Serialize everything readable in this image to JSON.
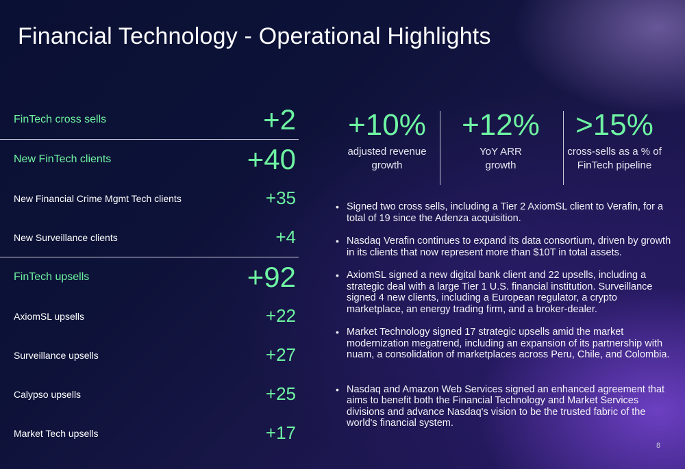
{
  "slide": {
    "title": "Financial Technology - Operational Highlights",
    "page_number": "8"
  },
  "metrics": {
    "cross_sells": {
      "label": "FinTech cross sells",
      "value": "+2"
    },
    "new_clients": {
      "label": "New FinTech clients",
      "value": "+40"
    },
    "fin_crime": {
      "label": "New Financial Crime Mgmt Tech clients",
      "value": "+35"
    },
    "surveillance_clients": {
      "label": "New Surveillance clients",
      "value": "+4"
    },
    "upsells": {
      "label": "FinTech upsells",
      "value": "+92"
    },
    "axiomsl": {
      "label": "AxiomSL upsells",
      "value": "+22"
    },
    "surveillance_upsells": {
      "label": "Surveillance upsells",
      "value": "+27"
    },
    "calypso": {
      "label": "Calypso upsells",
      "value": "+25"
    },
    "market_tech": {
      "label": "Market Tech upsells",
      "value": "+17"
    }
  },
  "stats": [
    {
      "value": "+10%",
      "caption_line1": "adjusted revenue",
      "caption_line2": "growth"
    },
    {
      "value": "+12%",
      "caption_line1": "YoY ARR",
      "caption_line2": "growth"
    },
    {
      "value": ">15%",
      "caption_line1": "cross-sells as a % of",
      "caption_line2": "FinTech pipeline"
    }
  ],
  "bullets": [
    "Signed two cross sells, including a Tier 2 AxiomSL client to Verafin, for a total of 19 since the Adenza acquisition.",
    "Nasdaq Verafin continues to expand its data consortium, driven by growth in its clients that now represent more than $10T in total assets.",
    "AxiomSL signed a new digital bank client and 22 upsells, including a strategic deal with a large Tier 1 U.S. financial institution. Surveillance signed 4 new clients, including a European regulator, a crypto marketplace, an energy trading firm, and a broker-dealer.",
    "Market Technology signed 17 strategic upsells amid the market modernization megatrend, including an expansion of its partnership with nuam, a consolidation of marketplaces across Peru, Chile, and Colombia.",
    "Nasdaq and Amazon Web Services signed an enhanced agreement that aims to benefit both the Financial Technology and Market Services divisions and advance Nasdaq's vision to be the trusted fabric of the world's financial system."
  ],
  "colors": {
    "accent_green": "#6ef4a2",
    "background_navy": "#0d1238",
    "background_purple": "#2a1a6a"
  }
}
